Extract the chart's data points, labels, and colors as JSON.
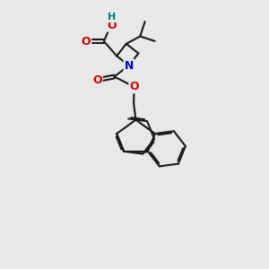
{
  "background_color": "#e8e8e8",
  "bond_color": "#1a1a1a",
  "bond_width": 1.5,
  "atom_colors": {
    "O": "#cc0000",
    "N": "#0000cc",
    "H": "#008080",
    "C": "#1a1a1a"
  },
  "font_size_atom": 9,
  "figsize": [
    3.0,
    3.0
  ],
  "dpi": 100
}
